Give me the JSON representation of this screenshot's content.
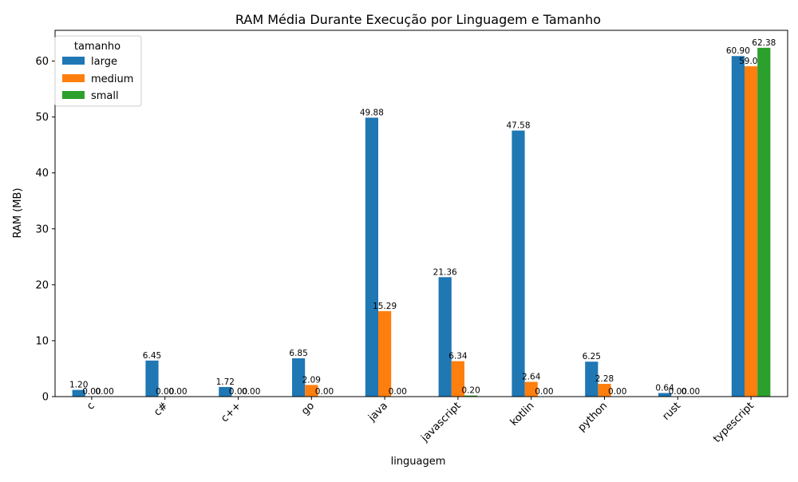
{
  "chart_data": {
    "type": "bar",
    "title": "RAM Média Durante Execução por Linguagem e Tamanho",
    "xlabel": "linguagem",
    "ylabel": "RAM (MB)",
    "categories": [
      "c",
      "c#",
      "c++",
      "go",
      "java",
      "javascript",
      "kotlin",
      "python",
      "rust",
      "typescript"
    ],
    "series": [
      {
        "name": "large",
        "color": "#1f77b4",
        "values": [
          1.2,
          6.45,
          1.72,
          6.85,
          49.88,
          21.36,
          47.58,
          6.25,
          0.64,
          60.9
        ]
      },
      {
        "name": "medium",
        "color": "#ff7f0e",
        "values": [
          0.0,
          0.0,
          0.0,
          2.09,
          15.29,
          6.34,
          2.64,
          2.28,
          0.0,
          59.07
        ]
      },
      {
        "name": "small",
        "color": "#2ca02c",
        "values": [
          0.0,
          0.0,
          0.0,
          0.0,
          0.0,
          0.2,
          0.0,
          0.0,
          0.0,
          62.38
        ]
      }
    ],
    "ylim": [
      0,
      65.5
    ],
    "yticks": [
      0,
      10,
      20,
      30,
      40,
      50,
      60
    ],
    "legend": {
      "title": "tamanho",
      "placement": "top-left"
    },
    "grid": false,
    "xtick_rotation": 45
  }
}
